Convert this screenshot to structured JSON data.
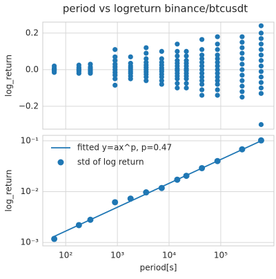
{
  "title": "period vs logreturn binance/btcusdt",
  "chart_data": [
    {
      "type": "scatter",
      "ylabel": "log_return",
      "xscale": "log",
      "grid": true,
      "color": "#1f77b4",
      "xlim": [
        36,
        1070000
      ],
      "ylim": [
        -0.325,
        0.26
      ],
      "xticks": [
        100,
        1000,
        10000,
        100000
      ],
      "yticks": [
        {
          "value": -0.2,
          "label": "−0.2"
        },
        {
          "value": 0,
          "label": "0.0"
        },
        {
          "value": 0.2,
          "label": "0.2"
        }
      ],
      "points": [
        [
          60,
          -0.015
        ],
        [
          60,
          -0.008
        ],
        [
          60,
          -0.003
        ],
        [
          60,
          0
        ],
        [
          60,
          0.004
        ],
        [
          60,
          0.009
        ],
        [
          60,
          0.02
        ],
        [
          180,
          -0.02
        ],
        [
          180,
          -0.01
        ],
        [
          180,
          -0.004
        ],
        [
          180,
          0
        ],
        [
          180,
          0.005
        ],
        [
          180,
          0.012
        ],
        [
          180,
          0.025
        ],
        [
          300,
          -0.02
        ],
        [
          300,
          -0.012
        ],
        [
          300,
          -0.005
        ],
        [
          300,
          0
        ],
        [
          300,
          0.006
        ],
        [
          300,
          0.014
        ],
        [
          300,
          0.03
        ],
        [
          900,
          -0.085
        ],
        [
          900,
          -0.05
        ],
        [
          900,
          -0.03
        ],
        [
          900,
          -0.015
        ],
        [
          900,
          0
        ],
        [
          900,
          0.015
        ],
        [
          900,
          0.03
        ],
        [
          900,
          0.05
        ],
        [
          900,
          0.07
        ],
        [
          900,
          0.11
        ],
        [
          1800,
          -0.05
        ],
        [
          1800,
          -0.035
        ],
        [
          1800,
          -0.02
        ],
        [
          1800,
          -0.01
        ],
        [
          1800,
          0
        ],
        [
          1800,
          0.01
        ],
        [
          1800,
          0.02
        ],
        [
          1800,
          0.035
        ],
        [
          1800,
          0.07
        ],
        [
          3600,
          -0.06
        ],
        [
          3600,
          -0.04
        ],
        [
          3600,
          -0.025
        ],
        [
          3600,
          -0.012
        ],
        [
          3600,
          0
        ],
        [
          3600,
          0.012
        ],
        [
          3600,
          0.025
        ],
        [
          3600,
          0.04
        ],
        [
          3600,
          0.06
        ],
        [
          3600,
          0.09
        ],
        [
          3600,
          0.12
        ],
        [
          7200,
          -0.08
        ],
        [
          7200,
          -0.06
        ],
        [
          7200,
          -0.04
        ],
        [
          7200,
          -0.025
        ],
        [
          7200,
          -0.01
        ],
        [
          7200,
          0
        ],
        [
          7200,
          0.01
        ],
        [
          7200,
          0.025
        ],
        [
          7200,
          0.04
        ],
        [
          7200,
          0.06
        ],
        [
          7200,
          0.1
        ],
        [
          14400,
          -0.1
        ],
        [
          14400,
          -0.075
        ],
        [
          14400,
          -0.05
        ],
        [
          14400,
          -0.035
        ],
        [
          14400,
          -0.02
        ],
        [
          14400,
          -0.005
        ],
        [
          14400,
          0.005
        ],
        [
          14400,
          0.02
        ],
        [
          14400,
          0.035
        ],
        [
          14400,
          0.05
        ],
        [
          14400,
          0.075
        ],
        [
          14400,
          0.1
        ],
        [
          14400,
          0.14
        ],
        [
          21600,
          -0.1
        ],
        [
          21600,
          -0.075
        ],
        [
          21600,
          -0.05
        ],
        [
          21600,
          -0.035
        ],
        [
          21600,
          -0.02
        ],
        [
          21600,
          -0.005
        ],
        [
          21600,
          0.005
        ],
        [
          21600,
          0.02
        ],
        [
          21600,
          0.035
        ],
        [
          21600,
          0.05
        ],
        [
          21600,
          0.075
        ],
        [
          21600,
          0.1
        ],
        [
          43200,
          -0.14
        ],
        [
          43200,
          -0.11
        ],
        [
          43200,
          -0.08
        ],
        [
          43200,
          -0.06
        ],
        [
          43200,
          -0.04
        ],
        [
          43200,
          -0.02
        ],
        [
          43200,
          0
        ],
        [
          43200,
          0.02
        ],
        [
          43200,
          0.04
        ],
        [
          43200,
          0.06
        ],
        [
          43200,
          0.08
        ],
        [
          43200,
          0.11
        ],
        [
          43200,
          0.165
        ],
        [
          86400,
          -0.14
        ],
        [
          86400,
          -0.11
        ],
        [
          86400,
          -0.08
        ],
        [
          86400,
          -0.06
        ],
        [
          86400,
          -0.04
        ],
        [
          86400,
          -0.02
        ],
        [
          86400,
          0
        ],
        [
          86400,
          0.02
        ],
        [
          86400,
          0.04
        ],
        [
          86400,
          0.06
        ],
        [
          86400,
          0.08
        ],
        [
          86400,
          0.11
        ],
        [
          86400,
          0.14
        ],
        [
          86400,
          0.18
        ],
        [
          259200,
          -0.15
        ],
        [
          259200,
          -0.12
        ],
        [
          259200,
          -0.09
        ],
        [
          259200,
          -0.06
        ],
        [
          259200,
          -0.03
        ],
        [
          259200,
          0
        ],
        [
          259200,
          0.03
        ],
        [
          259200,
          0.06
        ],
        [
          259200,
          0.09
        ],
        [
          259200,
          0.12
        ],
        [
          259200,
          0.15
        ],
        [
          259200,
          0.18
        ],
        [
          604800,
          -0.3
        ],
        [
          604800,
          -0.13
        ],
        [
          604800,
          -0.1
        ],
        [
          604800,
          -0.07
        ],
        [
          604800,
          -0.04
        ],
        [
          604800,
          -0.01
        ],
        [
          604800,
          0.02
        ],
        [
          604800,
          0.05
        ],
        [
          604800,
          0.08
        ],
        [
          604800,
          0.11
        ],
        [
          604800,
          0.14
        ],
        [
          604800,
          0.17
        ],
        [
          604800,
          0.2
        ],
        [
          604800,
          0.24
        ]
      ]
    },
    {
      "type": "line",
      "xlabel": "period[s]",
      "ylabel": "log_return",
      "xscale": "log",
      "yscale": "log",
      "grid": true,
      "legend": "upper left",
      "xlim": [
        36,
        1070000
      ],
      "ylim": [
        0.00086,
        0.128
      ],
      "xticks": [
        {
          "value": 100,
          "label": "10²"
        },
        {
          "value": 1000,
          "label": "10³"
        },
        {
          "value": 10000,
          "label": "10⁴"
        },
        {
          "value": 100000,
          "label": "10⁵"
        }
      ],
      "yticks": [
        {
          "value": 0.001,
          "label": "10⁻³"
        },
        {
          "value": 0.01,
          "label": "10⁻²"
        },
        {
          "value": 0.1,
          "label": "10⁻¹"
        }
      ],
      "series": [
        {
          "name": "fitted y=ax^p, p=0.47",
          "mark": "line",
          "color": "#1f77b4",
          "x": [
            60,
            604800
          ],
          "values": [
            0.00132,
            0.1
          ]
        },
        {
          "name": "std of log return",
          "mark": "marker",
          "color": "#1f77b4",
          "x": [
            60,
            180,
            300,
            900,
            1800,
            3600,
            7200,
            14400,
            21600,
            43200,
            86400,
            259200,
            604800
          ],
          "values": [
            0.00118,
            0.0022,
            0.0028,
            0.0062,
            0.0073,
            0.0097,
            0.0118,
            0.0172,
            0.0205,
            0.029,
            0.04,
            0.068,
            0.102
          ]
        }
      ]
    }
  ]
}
